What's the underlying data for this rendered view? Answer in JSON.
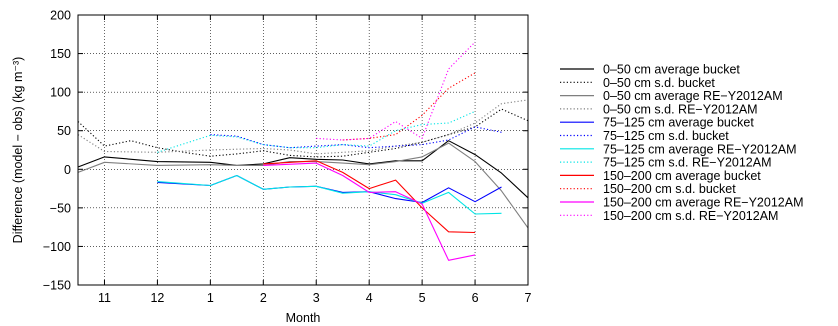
{
  "chart_data": {
    "type": "line",
    "xlabel": "Month",
    "ylabel": "Difference (model − obs) (kg m⁻³)",
    "x_ticks": [
      "11",
      "12",
      "1",
      "2",
      "3",
      "4",
      "5",
      "6",
      "7"
    ],
    "x_tick_values": [
      1,
      2,
      3,
      4,
      5,
      6,
      7,
      8,
      9
    ],
    "xlim": [
      0.5,
      9.0
    ],
    "ylim": [
      -150,
      200
    ],
    "y_ticks": [
      -150,
      -100,
      -50,
      0,
      50,
      100,
      150,
      200
    ],
    "y_tick_labels": [
      "−150",
      "−100",
      "−50",
      "0",
      "50",
      "100",
      "150",
      "200"
    ],
    "grid": true,
    "legend_position": "right",
    "series": [
      {
        "name": "0–50 cm average bucket",
        "color": "#000000",
        "dash": "solid",
        "x": [
          0.5,
          1,
          2,
          3,
          3.5,
          4,
          4.5,
          5,
          5.5,
          6,
          6.5,
          7,
          7.5,
          8,
          8.5,
          9
        ],
        "y": [
          3,
          16,
          10,
          9,
          5,
          7,
          15,
          13,
          12,
          7,
          11,
          11,
          37,
          19,
          -5,
          -37
        ]
      },
      {
        "name": "0–50 cm s.d. bucket",
        "color": "#000000",
        "dash": "dotted",
        "x": [
          0.5,
          1,
          1.5,
          2,
          2.5,
          3,
          3.5,
          4,
          4.5,
          5,
          5.5,
          6,
          6.5,
          7,
          7.5,
          8,
          8.5,
          9
        ],
        "y": [
          62,
          30,
          37,
          28,
          22,
          17,
          20,
          24,
          18,
          16,
          17,
          22,
          27,
          35,
          45,
          55,
          78,
          63
        ]
      },
      {
        "name": "0–50 cm average RE−Y2012AM",
        "color": "#7f7f7f",
        "dash": "solid",
        "x": [
          0.5,
          1,
          2,
          3,
          3.5,
          4,
          4.5,
          5,
          5.5,
          6,
          6.5,
          7,
          7.5,
          8,
          8.5,
          9
        ],
        "y": [
          -4,
          9,
          5,
          6,
          5,
          5,
          10,
          10,
          8,
          6,
          10,
          16,
          34,
          10,
          -28,
          -76
        ]
      },
      {
        "name": "0–50 cm s.d. RE−Y2012AM",
        "color": "#7f7f7f",
        "dash": "dotted",
        "x": [
          0.5,
          1,
          2,
          3,
          3.5,
          4,
          4.5,
          5,
          5.5,
          6,
          6.5,
          7,
          7.5,
          8,
          8.5,
          9
        ],
        "y": [
          45,
          23,
          22,
          25,
          26,
          27,
          25,
          20,
          22,
          24,
          30,
          35,
          45,
          60,
          85,
          90
        ]
      },
      {
        "name": "75–125 cm average bucket",
        "color": "#0000ff",
        "dash": "solid",
        "x": [
          2,
          3,
          3.5,
          4,
          4.5,
          5,
          5.5,
          6,
          6.5,
          7,
          7.5,
          8,
          8.5
        ],
        "y": [
          -17,
          -21,
          -8,
          -26,
          -23,
          -22,
          -30,
          -29,
          -38,
          -43,
          -24,
          -42,
          -23
        ]
      },
      {
        "name": "75–125 cm s.d. bucket",
        "color": "#0000ff",
        "dash": "dotted",
        "x": [
          3,
          3.5,
          4,
          4.5,
          5,
          5.5,
          6,
          6.5,
          7,
          7.5,
          8,
          8.5
        ],
        "y": [
          45,
          43,
          32,
          28,
          30,
          32,
          28,
          30,
          32,
          38,
          55,
          48
        ]
      },
      {
        "name": "75–125 cm average RE−Y2012AM",
        "color": "#00e5e5",
        "dash": "solid",
        "x": [
          2,
          3,
          3.5,
          4,
          4.5,
          5,
          5.5,
          6,
          6.5,
          7,
          7.5,
          8,
          8.5
        ],
        "y": [
          -16,
          -21,
          -8,
          -26,
          -23,
          -22,
          -31,
          -29,
          -33,
          -44,
          -30,
          -58,
          -57
        ]
      },
      {
        "name": "75–125 cm s.d. RE−Y2012AM",
        "color": "#00e5e5",
        "dash": "dotted",
        "x": [
          2,
          3,
          3.5,
          4,
          4.5,
          5,
          5.5,
          6,
          6.5,
          7,
          7.5,
          8
        ],
        "y": [
          22,
          44,
          42,
          32,
          28,
          28,
          32,
          30,
          50,
          58,
          60,
          75
        ]
      },
      {
        "name": "150–200 cm average bucket",
        "color": "#ff0000",
        "dash": "solid",
        "x": [
          4,
          5,
          5.5,
          6,
          6.5,
          7,
          7.5,
          8
        ],
        "y": [
          7,
          11,
          -4,
          -25,
          -14,
          -50,
          -81,
          -82
        ]
      },
      {
        "name": "150–200 cm s.d. bucket",
        "color": "#ff0000",
        "dash": "dotted",
        "x": [
          5.5,
          6,
          6.5,
          7,
          7.5,
          8
        ],
        "y": [
          38,
          40,
          45,
          70,
          105,
          125
        ]
      },
      {
        "name": "150–200 cm average RE−Y2012AM",
        "color": "#ff00ff",
        "dash": "solid",
        "x": [
          4,
          5,
          5.5,
          6,
          6.5,
          7,
          7.5,
          8
        ],
        "y": [
          5,
          8,
          -8,
          -30,
          -29,
          -45,
          -118,
          -111
        ]
      },
      {
        "name": "150–200 cm s.d. RE−Y2012AM",
        "color": "#ff00ff",
        "dash": "dotted",
        "x": [
          5,
          5.5,
          6,
          6.5,
          7,
          7.5,
          8
        ],
        "y": [
          40,
          38,
          40,
          62,
          40,
          130,
          165
        ]
      }
    ]
  }
}
